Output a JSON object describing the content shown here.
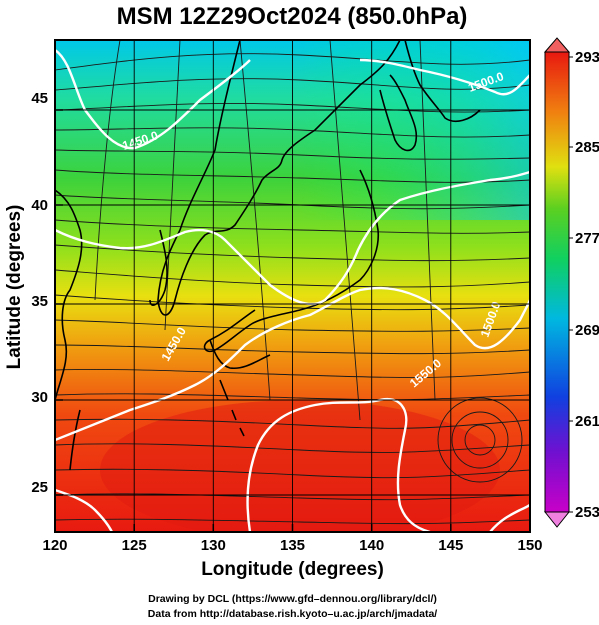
{
  "title": "MSM 12Z29Oct2024 (850.0hPa)",
  "x_axis_label": "Longitude (degrees)",
  "y_axis_label": "Latitude  (degrees)",
  "x_ticks": [
    "120",
    "125",
    "130",
    "135",
    "140",
    "145",
    "150"
  ],
  "y_ticks": [
    "25",
    "30",
    "35",
    "40",
    "45"
  ],
  "colorbar": {
    "ticks": [
      "293",
      "285",
      "277",
      "269",
      "261",
      "253"
    ],
    "range": [
      253,
      293
    ]
  },
  "contour_labels": [
    "1500.0",
    "1450.0",
    "1450.0",
    "1500.0",
    "1550.0"
  ],
  "credits": [
    "Drawing by DCL (https://www.gfd–dennou.org/library/dcl/)",
    "Data from http://database.rish.kyoto–u.ac.jp/arch/jmadata/"
  ],
  "map": {
    "lon_range": [
      120,
      150
    ],
    "lat_range": [
      22.6,
      48.2
    ],
    "field": "temperature (K) with streamlines and geopotential height contours"
  }
}
